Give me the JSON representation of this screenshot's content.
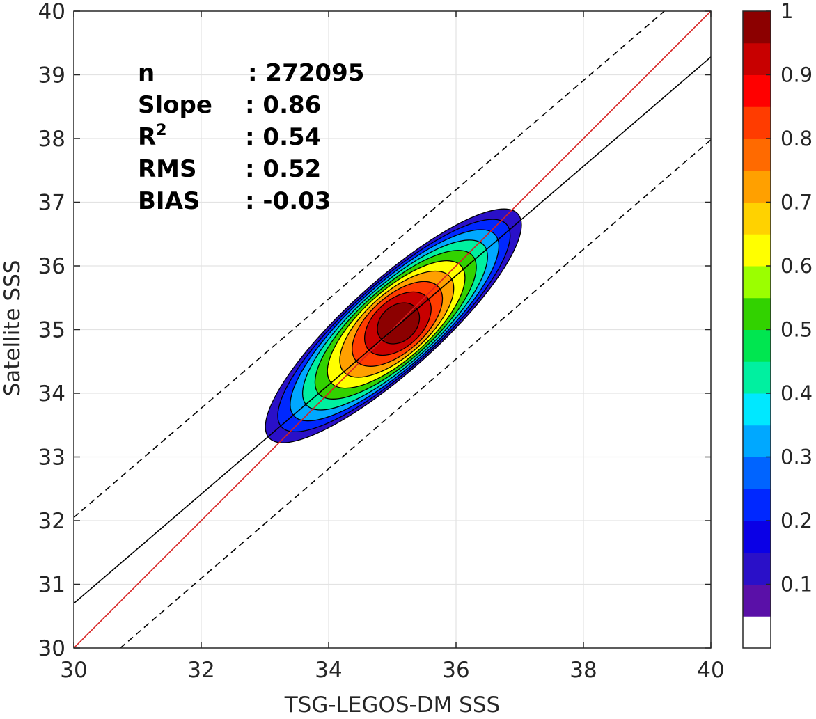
{
  "chart_data": {
    "type": "contour",
    "xlabel": "TSG-LEGOS-DM SSS",
    "ylabel": "Satellite SSS",
    "xlim": [
      30,
      40
    ],
    "ylim": [
      30,
      40
    ],
    "x_ticks": [
      "30",
      "32",
      "34",
      "36",
      "38",
      "40"
    ],
    "y_ticks": [
      "30",
      "31",
      "32",
      "33",
      "34",
      "35",
      "36",
      "37",
      "38",
      "39",
      "40"
    ],
    "grid": true,
    "stats": [
      {
        "label": "n",
        "value": ": 272095"
      },
      {
        "label": "Slope",
        "value": ": 0.86"
      },
      {
        "label": "R",
        "sup": "2",
        "value": ": 0.54"
      },
      {
        "label": "RMS",
        "value": ": 0.52"
      },
      {
        "label": "BIAS",
        "value": ": -0.03"
      }
    ],
    "lines": [
      {
        "role": "one-to-one",
        "color": "#d62020",
        "style": "solid",
        "points": [
          [
            30,
            30
          ],
          [
            40,
            40
          ]
        ]
      },
      {
        "role": "regression",
        "color": "#000000",
        "style": "solid",
        "points": [
          [
            30,
            30.7
          ],
          [
            40,
            39.28
          ]
        ]
      },
      {
        "role": "upper-bound",
        "color": "#000000",
        "style": "dashed",
        "points": [
          [
            30,
            32.05
          ],
          [
            39.27,
            40
          ]
        ]
      },
      {
        "role": "lower-bound",
        "color": "#000000",
        "style": "dashed",
        "points": [
          [
            30.73,
            30
          ],
          [
            40,
            37.98
          ]
        ]
      }
    ],
    "density_center": {
      "x": 35.1,
      "y": 35.1
    },
    "density_peak": 1,
    "contour_levels": [
      0.05,
      0.15,
      0.25,
      0.35,
      0.45,
      0.55,
      0.65,
      0.75,
      0.85,
      0.95
    ],
    "colorbar": {
      "ticks": [
        "0.1",
        "0.2",
        "0.3",
        "0.4",
        "0.5",
        "0.6",
        "0.7",
        "0.8",
        "0.9",
        "1"
      ],
      "tick_values": [
        0.1,
        0.2,
        0.3,
        0.4,
        0.5,
        0.6,
        0.7,
        0.8,
        0.9,
        1.0
      ],
      "colors": [
        "#ffffff",
        "#5a10a8",
        "#2a10c8",
        "#0a00e6",
        "#0028ff",
        "#0064ff",
        "#00a8ff",
        "#00e8ff",
        "#00f0a0",
        "#00e650",
        "#32d200",
        "#9bff00",
        "#ffff00",
        "#ffd200",
        "#ffa000",
        "#ff6a00",
        "#ff3c00",
        "#ff0000",
        "#c80000",
        "#8c0000"
      ]
    }
  }
}
